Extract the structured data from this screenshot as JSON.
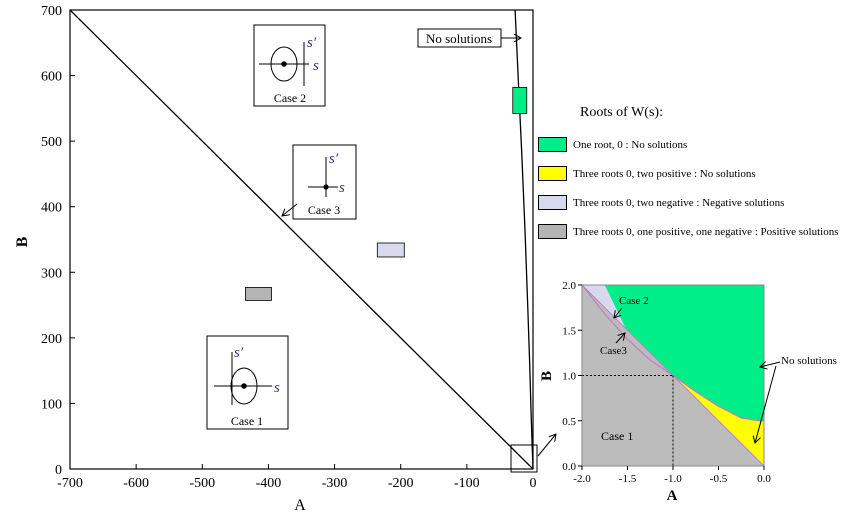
{
  "chart_data": [
    {
      "type": "area",
      "xlabel": "A",
      "ylabel": "B",
      "xlim": [
        -700,
        0
      ],
      "ylim": [
        0,
        700
      ],
      "x_ticks": [
        -700,
        -600,
        -500,
        -400,
        -300,
        -200,
        -100,
        0
      ],
      "y_ticks": [
        0,
        100,
        200,
        300,
        400,
        500,
        600,
        700
      ],
      "curves": [
        {
          "name": "line B = -A",
          "x": [
            -700,
            0
          ],
          "y": [
            700,
            0
          ]
        },
        {
          "name": "boundary curve",
          "x": [
            -27,
            -22,
            -17,
            -12,
            -8,
            -5,
            -3,
            -1,
            0
          ],
          "y": [
            700,
            590,
            480,
            360,
            250,
            160,
            90,
            30,
            0
          ]
        }
      ],
      "annotations": {
        "no_solutions": "No solutions",
        "case1": "Case 1",
        "case2": "Case 2",
        "case3": "Case 3",
        "s_label": "s",
        "s_prime_label": "s′"
      },
      "markers": [
        {
          "color": "#00ee88",
          "A": -20,
          "B": 562
        },
        {
          "color": "#d8d8ee",
          "A": -215,
          "B": 334
        },
        {
          "color": "#b4b4b4",
          "A": -415,
          "B": 267
        }
      ]
    },
    {
      "type": "area",
      "xlabel": "A",
      "ylabel": "B",
      "xlim": [
        -2.0,
        0.0
      ],
      "ylim": [
        0.0,
        2.0
      ],
      "x_ticks": [
        "-2.0",
        "-1.5",
        "-1.0",
        "-0.5",
        "0.0"
      ],
      "y_ticks": [
        "0.0",
        "0.5",
        "1.0",
        "1.5",
        "2.0"
      ],
      "regions": [
        {
          "name": "green",
          "color": "#00ee88"
        },
        {
          "name": "yellow",
          "color": "#ffff00"
        },
        {
          "name": "lavender",
          "color": "#d8d8ee"
        },
        {
          "name": "grey",
          "color": "#bcbcbc"
        }
      ],
      "boundary_curve": {
        "A": [
          -2.0,
          -1.75,
          -1.5,
          -1.25,
          -1.0,
          -0.75,
          -0.5,
          -0.25,
          -0.05
        ],
        "B": [
          2.0,
          1.68,
          1.4,
          1.17,
          1.0,
          0.82,
          0.66,
          0.53,
          0.5
        ]
      },
      "dotted_guides": {
        "A": -1.0,
        "B": 1.0
      },
      "annotations": {
        "case1": "Case 1",
        "case2": "Case 2",
        "case3": "Case3",
        "no_solutions": "No solutions"
      }
    }
  ],
  "legend": {
    "title": "Roots of W(s):",
    "items": [
      {
        "color": "#00ee88",
        "label": "One root, 0 : No solutions"
      },
      {
        "color": "#ffff00",
        "label": "Three roots 0, two positive : No solutions"
      },
      {
        "color": "#d8d8ee",
        "label": "Three roots 0, two negative : Negative solutions"
      },
      {
        "color": "#b4b4b4",
        "label": "Three roots 0, one positive, one negative : Positive solutions"
      }
    ]
  }
}
